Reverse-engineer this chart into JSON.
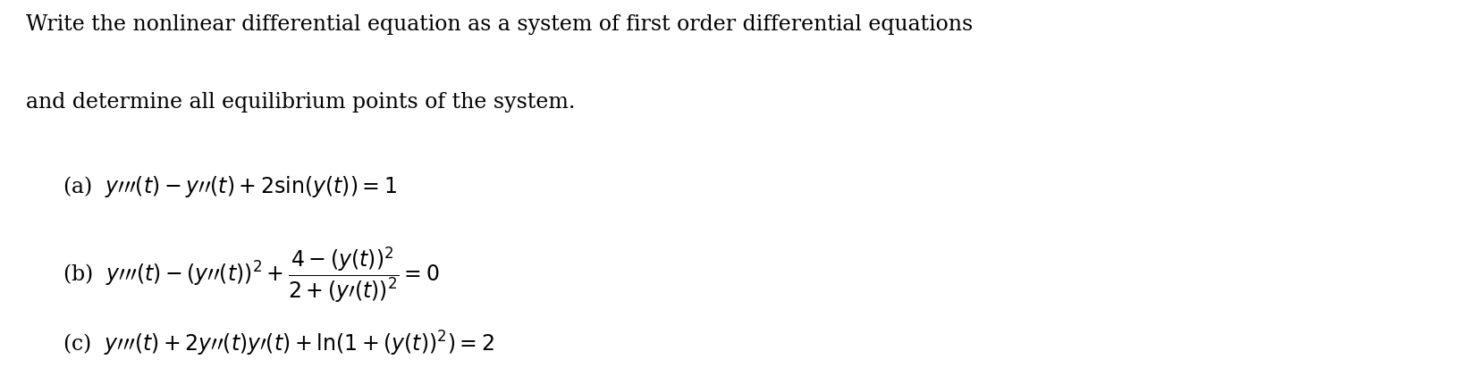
{
  "background_color": "#ffffff",
  "figsize": [
    16.42,
    4.12
  ],
  "dpi": 100,
  "text_color": "#000000",
  "header_line1": "Write the nonlinear differential equation as a system of first order differential equations",
  "header_line2": "and determine all equilibrium points of the system.",
  "header_fontsize": 17,
  "eq_fontsize": 17
}
